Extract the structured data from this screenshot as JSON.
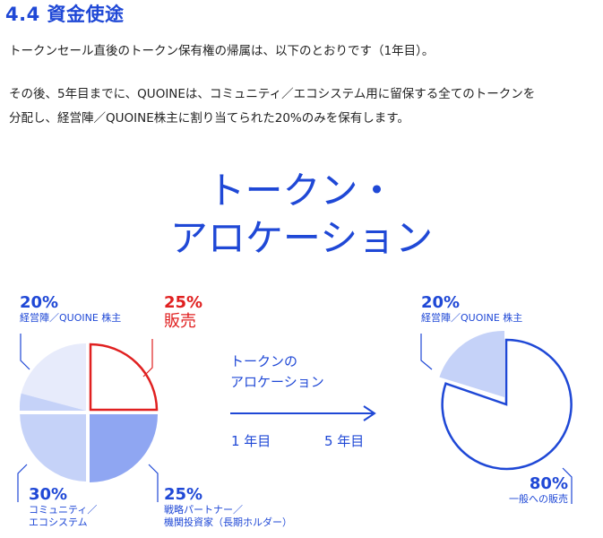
{
  "section": {
    "heading": "4.4 資金使途",
    "paragraph1": "トークンセール直後のトークン保有権の帰属は、以下のとおりです（1年目）。",
    "paragraph2_line1": "その後、5年目までに、QUOINEは、コミュニティ／エコシステム用に留保する全てのトークンを",
    "paragraph2_line2": "分配し、経営陣／QUOINE株主に割り当てられた20%のみを保有します。"
  },
  "diagram": {
    "title_line1": "トークン・",
    "title_line2": "アロケーション",
    "arrow_label_line1": "トークンの",
    "arrow_label_line2": "アロケーション",
    "year_start": "1 年目",
    "year_end": "5 年目",
    "left_pie": {
      "slices": [
        {
          "pct": "20%",
          "label": "経営陣／QUOINE 株主",
          "value": 20,
          "color": "#e7ebfb"
        },
        {
          "pct": "25%",
          "label": "販売",
          "value": 25,
          "color": "#ffffff",
          "outline": "#e02020"
        },
        {
          "pct": "25%",
          "label_line1": "戦略パートナー／",
          "label_line2": "機関投資家（長期ホルダー）",
          "value": 25,
          "color": "#8fa6f2"
        },
        {
          "pct": "30%",
          "label_line1": "コミュニティ／",
          "label_line2": "エコシステム",
          "value": 30,
          "color": "#c5d2f8"
        }
      ]
    },
    "right_pie": {
      "slices": [
        {
          "pct": "20%",
          "label": "経営陣／QUOINE 株主",
          "value": 20,
          "color": "#c5d2f8"
        },
        {
          "pct": "80%",
          "label": "一般への販売",
          "value": 80,
          "color": "#ffffff",
          "outline": "#1f48d6"
        }
      ]
    },
    "colors": {
      "accent": "#1f48d6",
      "highlight": "#e02020"
    }
  }
}
